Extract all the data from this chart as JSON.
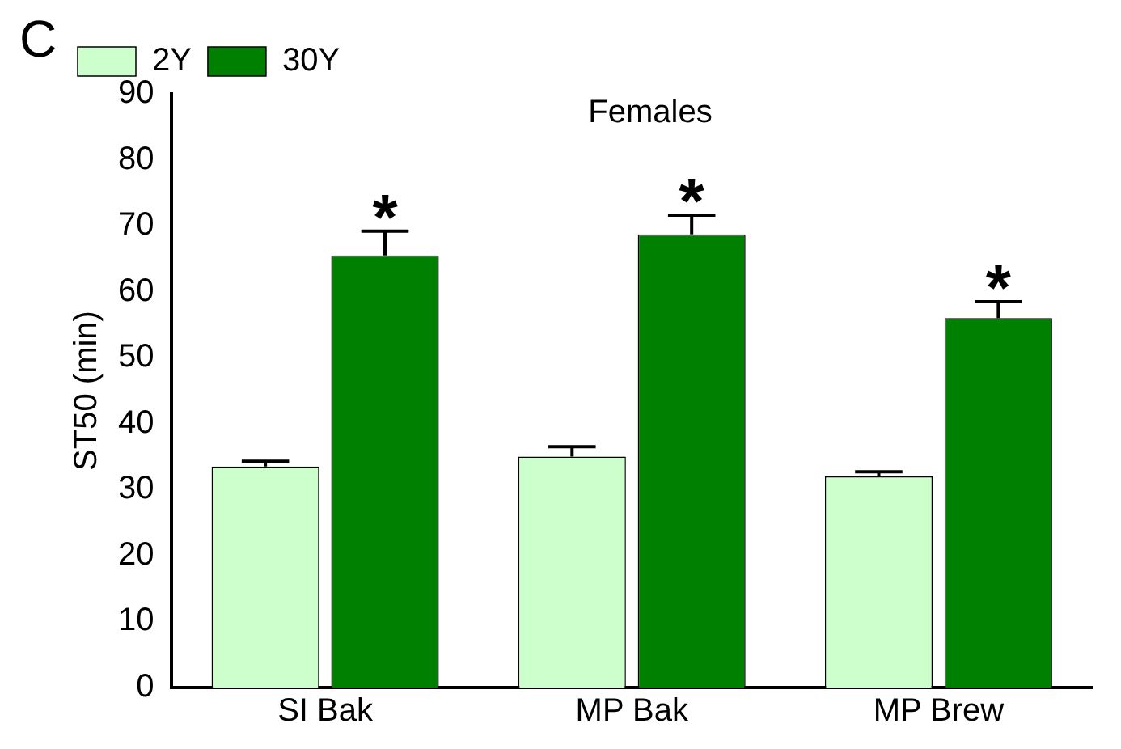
{
  "chart_data": {
    "type": "bar",
    "title": "Females",
    "ylabel": "ST50 (min)",
    "categories": [
      "SI Bak",
      "MP Bak",
      "MP Brew"
    ],
    "series": [
      {
        "name": "2Y",
        "color": "#ccffcc",
        "values": [
          33.5,
          35,
          32
        ],
        "errors": [
          [
            33.5,
            34.3
          ],
          [
            35,
            36.5
          ],
          [
            32,
            32.7
          ]
        ]
      },
      {
        "name": "30Y",
        "color": "#008000",
        "values": [
          65.5,
          68.7,
          56
        ],
        "errors": [
          [
            65.5,
            69.2
          ],
          [
            68.7,
            71.6
          ],
          [
            56,
            58.5
          ]
        ]
      }
    ],
    "ylim": [
      0,
      90
    ],
    "yticks": [
      0,
      10,
      20,
      30,
      40,
      50,
      60,
      70,
      80,
      90
    ],
    "legend": "top left",
    "grid": false,
    "annotations": [
      "C",
      "*",
      "*",
      "*"
    ]
  }
}
